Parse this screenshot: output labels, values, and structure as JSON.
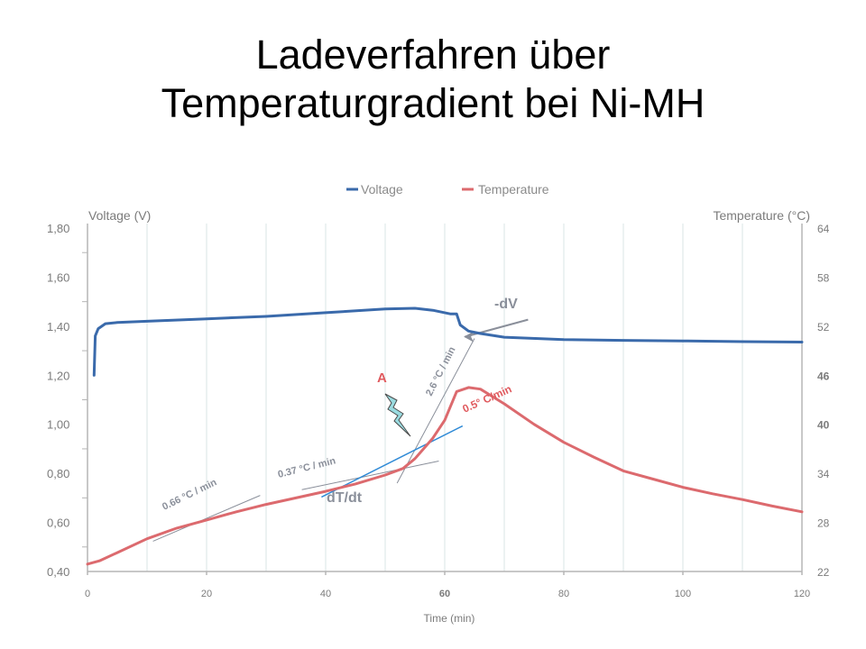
{
  "slide": {
    "title_line1": "Ladeverfahren über",
    "title_line2": "Temperaturgradient bei Ni-MH"
  },
  "chart_data": {
    "type": "line",
    "xlabel": "Time (min)",
    "ylabel_left": "Voltage (V)",
    "ylabel_right": "Temperature (°C)",
    "xlim": [
      0,
      120
    ],
    "ylim_left": [
      0.4,
      1.8
    ],
    "ylim_right": [
      22,
      64
    ],
    "grid": true,
    "legend_position": "top",
    "x_ticks": [
      "0",
      "20",
      "40",
      "60",
      "80",
      "100",
      "120"
    ],
    "x_ticks_style": {
      "60": {
        "size": 15,
        "bold": true
      },
      "20": {
        "size": 14
      },
      "100": {
        "size": 14
      }
    },
    "y_left_ticks": [
      "0,40",
      "0,60",
      "0,80",
      "1,00",
      "1,20",
      "1,40",
      "1,60",
      "1,80"
    ],
    "y_right_ticks": [
      {
        "value": 22,
        "label": "22"
      },
      {
        "value": 28,
        "label": "28"
      },
      {
        "value": 34,
        "label": "34"
      },
      {
        "value": 40,
        "label": "40",
        "color": "#3f9a3f",
        "bold": true
      },
      {
        "value": 46,
        "label": "46",
        "bold": true
      },
      {
        "value": 52,
        "label": "52"
      },
      {
        "value": 58,
        "label": "58"
      },
      {
        "value": 64,
        "label": "64"
      }
    ],
    "series": [
      {
        "name": "Voltage",
        "axis": "left",
        "color": "#3a6aab",
        "points": [
          [
            1.1,
            1.2
          ],
          [
            1.3,
            1.36
          ],
          [
            1.8,
            1.39
          ],
          [
            3,
            1.41
          ],
          [
            5,
            1.415
          ],
          [
            10,
            1.42
          ],
          [
            20,
            1.43
          ],
          [
            30,
            1.44
          ],
          [
            40,
            1.455
          ],
          [
            50,
            1.47
          ],
          [
            55,
            1.473
          ],
          [
            58,
            1.465
          ],
          [
            61,
            1.45
          ],
          [
            62,
            1.45
          ],
          [
            62.6,
            1.405
          ],
          [
            64,
            1.38
          ],
          [
            66,
            1.37
          ],
          [
            70,
            1.355
          ],
          [
            80,
            1.345
          ],
          [
            90,
            1.342
          ],
          [
            100,
            1.34
          ],
          [
            110,
            1.337
          ],
          [
            120,
            1.335
          ]
        ]
      },
      {
        "name": "Temperature",
        "axis": "right",
        "color": "#dc6a6e",
        "points": [
          [
            0,
            22.9
          ],
          [
            2,
            23.3
          ],
          [
            5,
            24.3
          ],
          [
            10,
            26.0
          ],
          [
            15,
            27.3
          ],
          [
            20,
            28.3
          ],
          [
            25,
            29.3
          ],
          [
            30,
            30.2
          ],
          [
            35,
            31.0
          ],
          [
            40,
            31.8
          ],
          [
            45,
            32.7
          ],
          [
            50,
            33.8
          ],
          [
            53,
            34.6
          ],
          [
            55,
            35.8
          ],
          [
            58,
            38.3
          ],
          [
            60,
            40.5
          ],
          [
            62,
            44.0
          ],
          [
            64,
            44.5
          ],
          [
            66,
            44.3
          ],
          [
            70,
            42.5
          ],
          [
            75,
            40.0
          ],
          [
            80,
            37.8
          ],
          [
            85,
            36.0
          ],
          [
            90,
            34.3
          ],
          [
            95,
            33.3
          ],
          [
            100,
            32.3
          ],
          [
            105,
            31.5
          ],
          [
            110,
            30.8
          ],
          [
            115,
            30.0
          ],
          [
            120,
            29.3
          ]
        ]
      }
    ],
    "annotations": {
      "slope_1": "0.66 °C / min",
      "slope_2": "0.37 °C / min",
      "slope_3": "2.6 °C / min",
      "slope_4": "0.5° C/min",
      "point_a": "A",
      "minus_dv": "-dV",
      "dt_dt": "dT/dt"
    },
    "colors": {
      "voltage": "#3a6aab",
      "temperature": "#dc6a6e",
      "tangent": "#2f8ad6",
      "grid": "#d8e6e6",
      "axis": "#b5b5b5",
      "annotation_gray": "#8a8f9a",
      "annotation_red": "#e05a5e"
    }
  }
}
